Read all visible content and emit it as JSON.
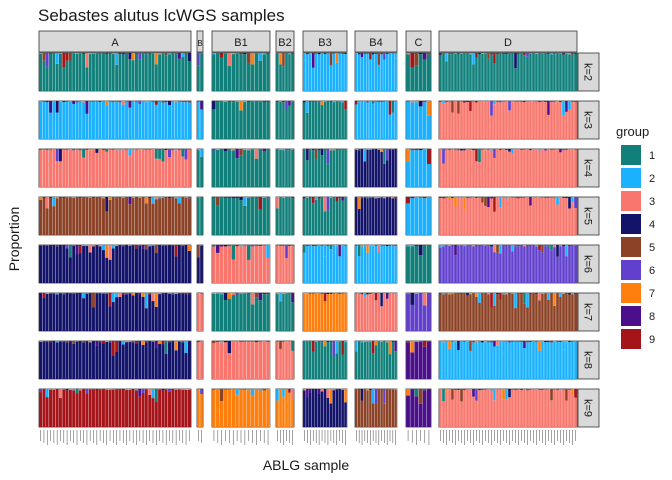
{
  "chart_data": {
    "type": "bar",
    "subtype": "stacked-proportion-facet-grid",
    "title": "Sebastes alutus lcWGS samples",
    "xlabel": "ABLG sample",
    "ylabel": "Proportion",
    "ylim": [
      0,
      1
    ],
    "grid": false,
    "legend": {
      "title": "group",
      "position": "right",
      "entries": [
        {
          "label": "1",
          "color": "#11807A"
        },
        {
          "label": "2",
          "color": "#1AB2FF"
        },
        {
          "label": "3",
          "color": "#F8766D"
        },
        {
          "label": "4",
          "color": "#13136A"
        },
        {
          "label": "5",
          "color": "#8C4226"
        },
        {
          "label": "6",
          "color": "#6040CC"
        },
        {
          "label": "7",
          "color": "#FF7F0E"
        },
        {
          "label": "8",
          "color": "#4B0F8C"
        },
        {
          "label": "9",
          "color": "#A51419"
        }
      ]
    },
    "columns": [
      {
        "label": "A",
        "samples": 46
      },
      {
        "label": "B",
        "samples": 2
      },
      {
        "label": "B1",
        "samples": 15
      },
      {
        "label": "B2",
        "samples": 6
      },
      {
        "label": "B3",
        "samples": 15
      },
      {
        "label": "B4",
        "samples": 15
      },
      {
        "label": "C",
        "samples": 6
      },
      {
        "label": "D",
        "samples": 46
      }
    ],
    "rows": [
      {
        "label": "k=2",
        "dominant": [
          "1",
          "1",
          "1",
          "1",
          "2",
          "2",
          "1",
          "1"
        ]
      },
      {
        "label": "k=3",
        "dominant": [
          "2",
          "2",
          "1",
          "1",
          "1",
          "2",
          "2",
          "3"
        ]
      },
      {
        "label": "k=4",
        "dominant": [
          "3",
          "1",
          "1",
          "1",
          "1",
          "4",
          "2",
          "3"
        ]
      },
      {
        "label": "k=5",
        "dominant": [
          "5",
          "1",
          "1",
          "1",
          "1",
          "4",
          "2",
          "3"
        ]
      },
      {
        "label": "k=6",
        "dominant": [
          "4",
          "4",
          "3",
          "3",
          "2",
          "2",
          "1",
          "6"
        ]
      },
      {
        "label": "k=7",
        "dominant": [
          "4",
          "3",
          "1",
          "1",
          "7",
          "3",
          "6",
          "5"
        ]
      },
      {
        "label": "k=8",
        "dominant": [
          "4",
          "3",
          "3",
          "3",
          "1",
          "1",
          "8",
          "2"
        ]
      },
      {
        "label": "k=9",
        "dominant": [
          "9",
          "7",
          "7",
          "7",
          "4",
          "5",
          "8",
          "3"
        ]
      }
    ]
  }
}
